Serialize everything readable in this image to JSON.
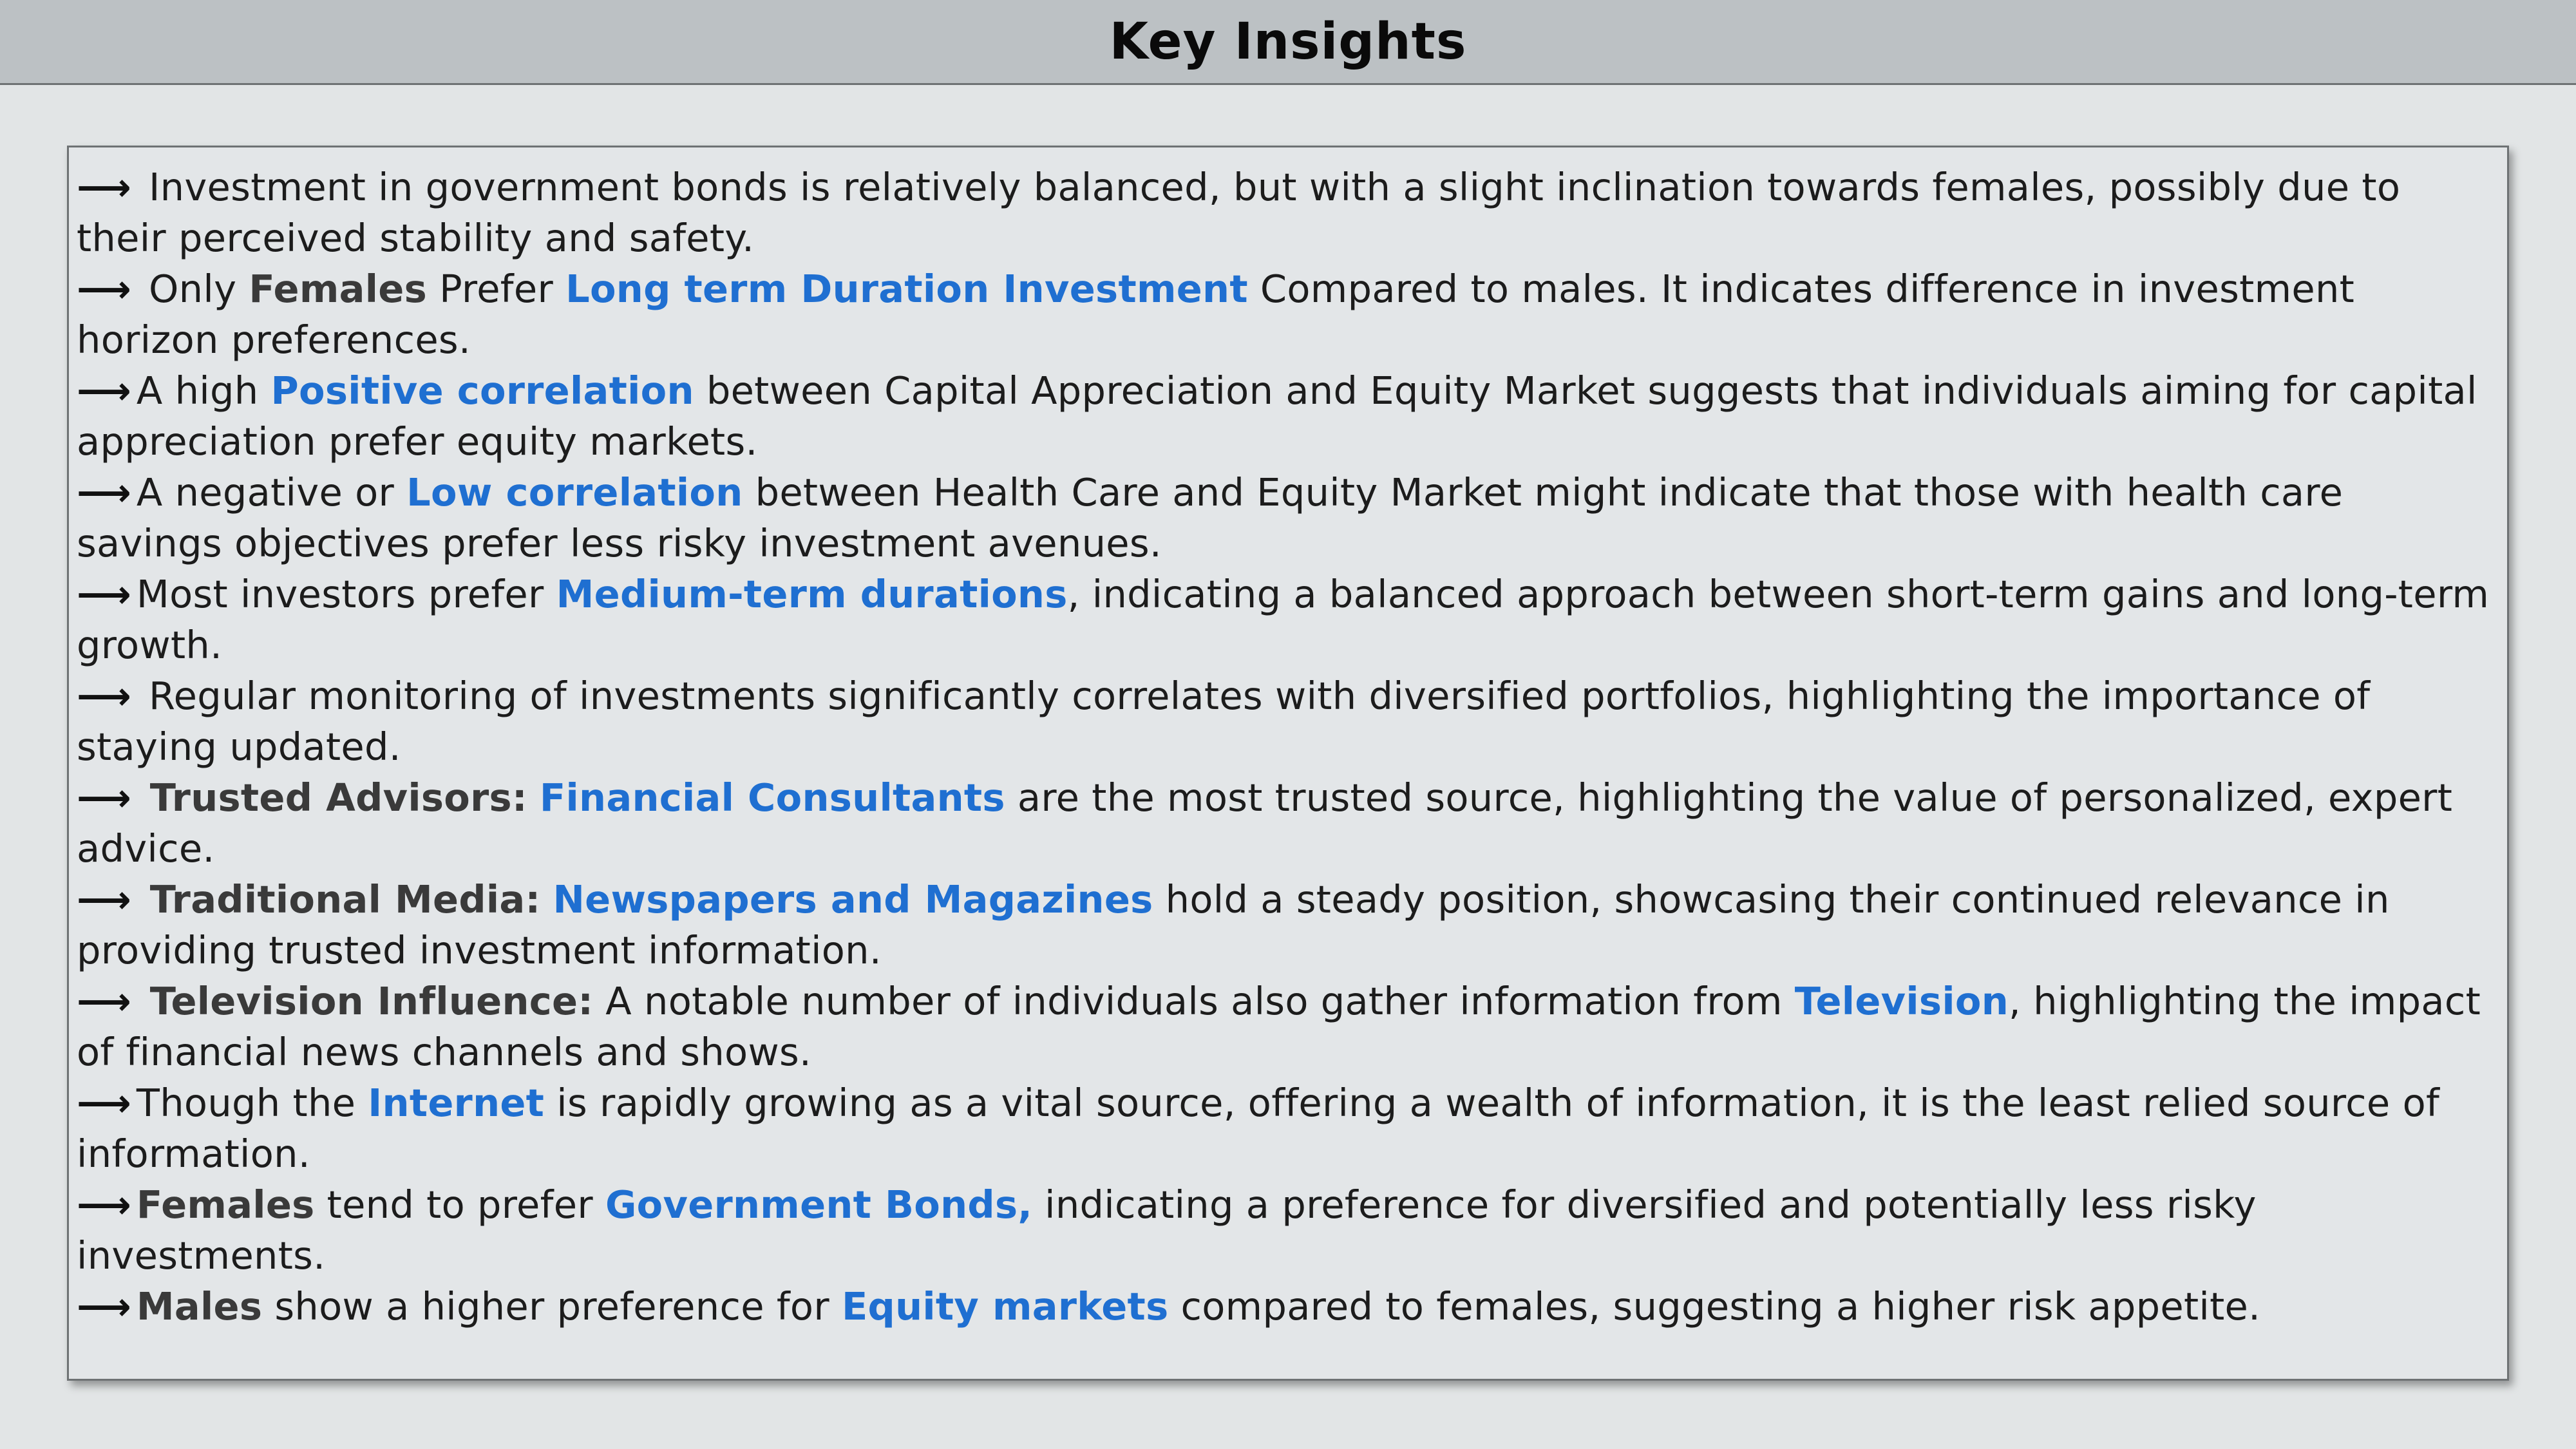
{
  "header": {
    "title": "Key Insights"
  },
  "colors": {
    "highlight": "#1f6fd1",
    "header_bg": "#bcc1c4",
    "page_bg": "#e2e5e6"
  },
  "insights": [
    {
      "arrow": "⟶",
      "parts": [
        {
          "style": "plain",
          "text": " Investment in government bonds is relatively balanced, but with a slight inclination towards females, possibly due to their perceived stability and safety."
        }
      ]
    },
    {
      "arrow": "⟶",
      "parts": [
        {
          "style": "plain",
          "text": " Only "
        },
        {
          "style": "lead",
          "text": "Females"
        },
        {
          "style": "plain",
          "text": " Prefer "
        },
        {
          "style": "hl",
          "text": "Long term Duration Investment"
        },
        {
          "style": "plain",
          "text": " Compared to males. It indicates difference in investment horizon preferences."
        }
      ]
    },
    {
      "arrow": "⟶",
      "parts": [
        {
          "style": "plain",
          "text": "A high "
        },
        {
          "style": "hl",
          "text": "Positive correlation"
        },
        {
          "style": "plain",
          "text": " between Capital Appreciation and Equity Market suggests that individuals aiming for capital appreciation prefer equity markets."
        }
      ]
    },
    {
      "arrow": "⟶",
      "parts": [
        {
          "style": "plain",
          "text": "A negative or "
        },
        {
          "style": "hl",
          "text": "Low correlation"
        },
        {
          "style": "plain",
          "text": " between Health Care and Equity Market might indicate that those with health care savings objectives prefer less risky investment avenues."
        }
      ]
    },
    {
      "arrow": "⟶",
      "parts": [
        {
          "style": "plain",
          "text": "Most investors prefer "
        },
        {
          "style": "hl",
          "text": "Medium-term durations"
        },
        {
          "style": "plain",
          "text": ", indicating a balanced approach between short-term gains and long-term growth."
        }
      ]
    },
    {
      "arrow": "⟶",
      "parts": [
        {
          "style": "plain",
          "text": " Regular monitoring of investments significantly correlates with diversified portfolios, highlighting the importance of staying updated."
        }
      ]
    },
    {
      "arrow": "⟶",
      "parts": [
        {
          "style": "lead",
          "text": " Trusted Advisors:"
        },
        {
          "style": "plain",
          "text": " "
        },
        {
          "style": "hl",
          "text": "Financial Consultants"
        },
        {
          "style": "plain",
          "text": " are the most trusted source, highlighting the value of personalized, expert advice."
        }
      ]
    },
    {
      "arrow": "⟶",
      "parts": [
        {
          "style": "lead",
          "text": " Traditional Media:"
        },
        {
          "style": "plain",
          "text": " "
        },
        {
          "style": "hl",
          "text": "Newspapers and Magazines"
        },
        {
          "style": "plain",
          "text": " hold a steady position, showcasing their continued relevance in providing trusted investment information."
        }
      ]
    },
    {
      "arrow": "⟶",
      "parts": [
        {
          "style": "lead",
          "text": " Television Influence:"
        },
        {
          "style": "plain",
          "text": " A notable number of individuals also gather information from "
        },
        {
          "style": "hl",
          "text": "Television"
        },
        {
          "style": "plain",
          "text": ", highlighting the impact of financial news channels and shows."
        }
      ]
    },
    {
      "arrow": "⟶",
      "parts": [
        {
          "style": "plain",
          "text": "Though the "
        },
        {
          "style": "hl",
          "text": "Internet"
        },
        {
          "style": "plain",
          "text": " is rapidly growing as a vital source, offering a wealth of information, it is the least relied source of information."
        }
      ]
    },
    {
      "arrow": "⟶",
      "parts": [
        {
          "style": "lead",
          "text": "Females"
        },
        {
          "style": "plain",
          "text": " tend to prefer "
        },
        {
          "style": "hl",
          "text": "Government Bonds,"
        },
        {
          "style": "plain",
          "text": " indicating a preference for diversified and potentially less risky investments."
        }
      ]
    },
    {
      "arrow": "⟶",
      "parts": [
        {
          "style": "lead",
          "text": "Males"
        },
        {
          "style": "plain",
          "text": " show a higher preference for "
        },
        {
          "style": "hl",
          "text": "Equity markets"
        },
        {
          "style": "plain",
          "text": " compared to females, suggesting a higher risk appetite."
        }
      ]
    }
  ]
}
